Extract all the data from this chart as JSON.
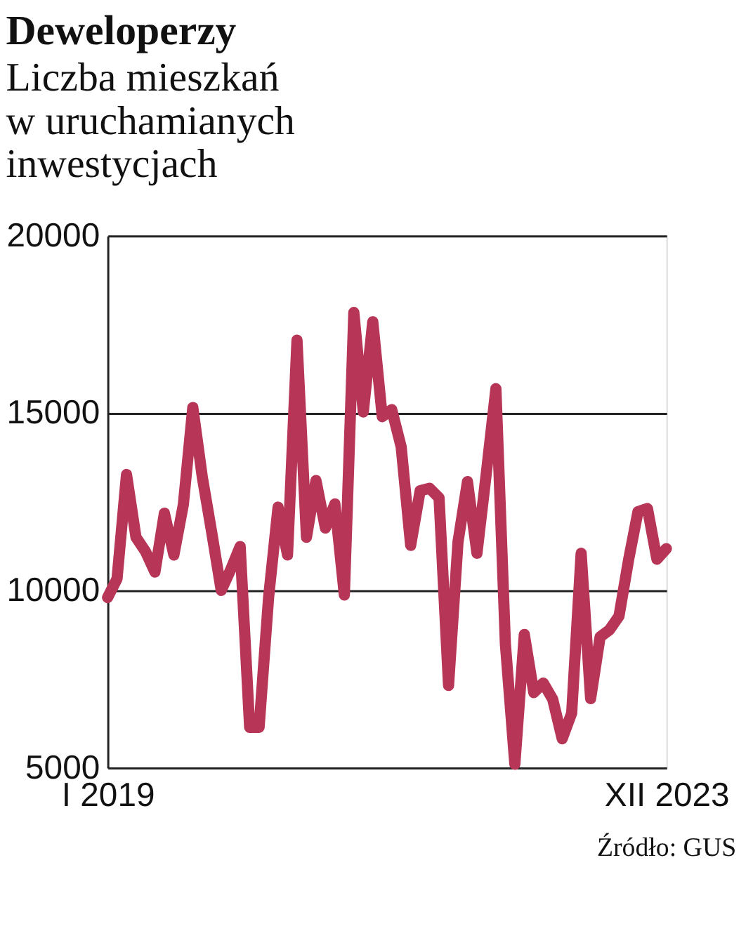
{
  "chart_data": {
    "type": "line",
    "title": "Deweloperzy",
    "subtitle": "Liczba mieszkań w uruchamianych inwestycjach",
    "categories": [
      "I 2019",
      null,
      null,
      null,
      null,
      null,
      null,
      null,
      null,
      null,
      null,
      null,
      null,
      null,
      null,
      null,
      null,
      null,
      null,
      null,
      null,
      null,
      null,
      null,
      null,
      null,
      null,
      null,
      null,
      null,
      null,
      null,
      null,
      null,
      null,
      null,
      null,
      null,
      null,
      null,
      null,
      null,
      null,
      null,
      null,
      null,
      null,
      null,
      null,
      null,
      null,
      null,
      null,
      null,
      null,
      null,
      null,
      null,
      null,
      "XII 2023"
    ],
    "series": [
      {
        "color": "#b73556",
        "values": [
          9800,
          10330,
          13270,
          11500,
          11100,
          10520,
          12180,
          11000,
          12420,
          15160,
          13200,
          11630,
          10000,
          10590,
          11240,
          6140,
          6140,
          9800,
          12350,
          11000,
          17060,
          11500,
          13100,
          11760,
          12440,
          9870,
          17840,
          15030,
          17580,
          14900,
          15100,
          14050,
          11270,
          12810,
          12880,
          12610,
          7320,
          11370,
          13070,
          11050,
          13330,
          15690,
          8500,
          5100,
          8760,
          7120,
          7390,
          6930,
          5820,
          6540,
          11050,
          6950,
          8690,
          8890,
          9280,
          10850,
          12220,
          12310,
          10880,
          11180
        ]
      }
    ],
    "ylim": [
      5000,
      20000
    ],
    "yticks": [
      5000,
      10000,
      15000,
      20000
    ],
    "grid": "y",
    "legend": false,
    "marker": "none",
    "line_style": "solid",
    "annotations": [
      "Źródło: GUS"
    ]
  }
}
